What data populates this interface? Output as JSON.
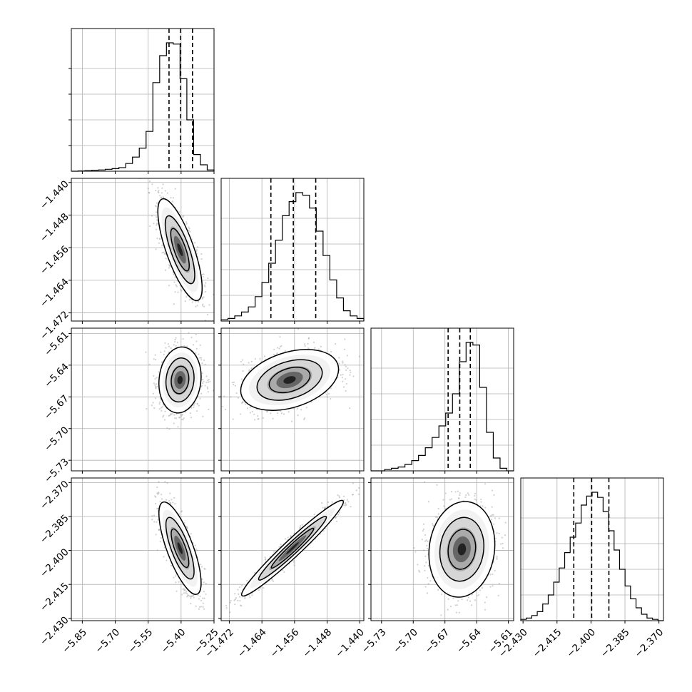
{
  "chart_data": {
    "type": "corner",
    "grid": true,
    "parameters": [
      {
        "range": [
          -5.9,
          -5.25
        ],
        "ticks": [
          -5.85,
          -5.7,
          -5.55,
          -5.4,
          -5.25
        ],
        "tick_labels": [
          "−5.85",
          "−5.70",
          "−5.55",
          "−5.40",
          "−5.25"
        ],
        "quantiles": [
          -5.455,
          -5.402,
          -5.348
        ],
        "hist": [
          0.0,
          0.002,
          0.004,
          0.008,
          0.01,
          0.015,
          0.02,
          0.028,
          0.06,
          0.11,
          0.18,
          0.31,
          0.69,
          0.9,
          1.0,
          0.99,
          0.72,
          0.4,
          0.13,
          0.05,
          0.01
        ]
      },
      {
        "range": [
          -1.474,
          -1.439
        ],
        "ticks": [
          -1.44,
          -1.448,
          -1.456,
          -1.464,
          -1.472
        ],
        "tick_labels": [
          "−1.440",
          "−1.448",
          "−1.456",
          "−1.464",
          "−1.472"
        ],
        "x_ticks": [
          -1.472,
          -1.464,
          -1.456,
          -1.448,
          -1.44
        ],
        "x_tick_labels": [
          "−1.472",
          "−1.464",
          "−1.456",
          "−1.448",
          "−1.440"
        ],
        "quantiles": [
          -1.4618,
          -1.4563,
          -1.4508
        ],
        "hist": [
          0.01,
          0.02,
          0.04,
          0.07,
          0.11,
          0.19,
          0.3,
          0.45,
          0.63,
          0.82,
          0.93,
          1.0,
          0.98,
          0.88,
          0.7,
          0.51,
          0.32,
          0.18,
          0.08,
          0.04,
          0.02
        ]
      },
      {
        "range": [
          -5.74,
          -5.605
        ],
        "ticks": [
          -5.61,
          -5.64,
          -5.67,
          -5.7,
          -5.73
        ],
        "tick_labels": [
          "−5.61",
          "−5.64",
          "−5.67",
          "−5.70",
          "−5.73"
        ],
        "x_ticks": [
          -5.73,
          -5.7,
          -5.67,
          -5.64,
          -5.61
        ],
        "x_tick_labels": [
          "−5.73",
          "−5.70",
          "−5.67",
          "−5.64",
          "−5.61"
        ],
        "quantiles": [
          -5.667,
          -5.656,
          -5.646
        ],
        "hist": [
          0.0,
          0.0,
          0.01,
          0.02,
          0.03,
          0.05,
          0.08,
          0.12,
          0.18,
          0.26,
          0.35,
          0.45,
          0.6,
          0.85,
          1.0,
          0.98,
          0.65,
          0.3,
          0.1,
          0.02,
          0.0
        ]
      },
      {
        "range": [
          -2.431,
          -2.368
        ],
        "ticks": [
          -2.37,
          -2.385,
          -2.4,
          -2.415,
          -2.43
        ],
        "tick_labels": [
          "−2.370",
          "−2.385",
          "−2.400",
          "−2.415",
          "−2.430"
        ],
        "x_ticks": [
          -2.43,
          -2.415,
          -2.4,
          -2.385,
          -2.37
        ],
        "x_tick_labels": [
          "−2.430",
          "−2.415",
          "−2.400",
          "−2.385",
          "−2.370"
        ],
        "quantiles": [
          -2.4076,
          -2.3997,
          -2.3921
        ],
        "hist": [
          0.01,
          0.02,
          0.04,
          0.07,
          0.13,
          0.2,
          0.3,
          0.41,
          0.53,
          0.65,
          0.76,
          0.9,
          0.97,
          1.0,
          0.96,
          0.85,
          0.7,
          0.55,
          0.4,
          0.27,
          0.17,
          0.1,
          0.05,
          0.02,
          0.01,
          0.0
        ]
      }
    ],
    "pairs": [
      {
        "x": 0,
        "y": 1,
        "mean": [
          -5.405,
          -1.4565
        ],
        "sd": [
          0.042,
          0.0052
        ],
        "rho": -0.75
      },
      {
        "x": 0,
        "y": 2,
        "mean": [
          -5.405,
          -5.654
        ],
        "sd": [
          0.04,
          0.013
        ],
        "rho": 0.1
      },
      {
        "x": 1,
        "y": 2,
        "mean": [
          -1.4572,
          -5.654
        ],
        "sd": [
          0.005,
          0.012
        ],
        "rho": 0.35
      },
      {
        "x": 0,
        "y": 3,
        "mean": [
          -5.405,
          -2.399
        ],
        "sd": [
          0.04,
          0.0085
        ],
        "rho": -0.75
      },
      {
        "x": 1,
        "y": 3,
        "mean": [
          -1.4565,
          -2.399
        ],
        "sd": [
          0.0052,
          0.0088
        ],
        "rho": 0.97
      },
      {
        "x": 2,
        "y": 3,
        "mean": [
          -5.654,
          -2.3995
        ],
        "sd": [
          0.013,
          0.0088
        ],
        "rho": 0.1
      }
    ]
  }
}
